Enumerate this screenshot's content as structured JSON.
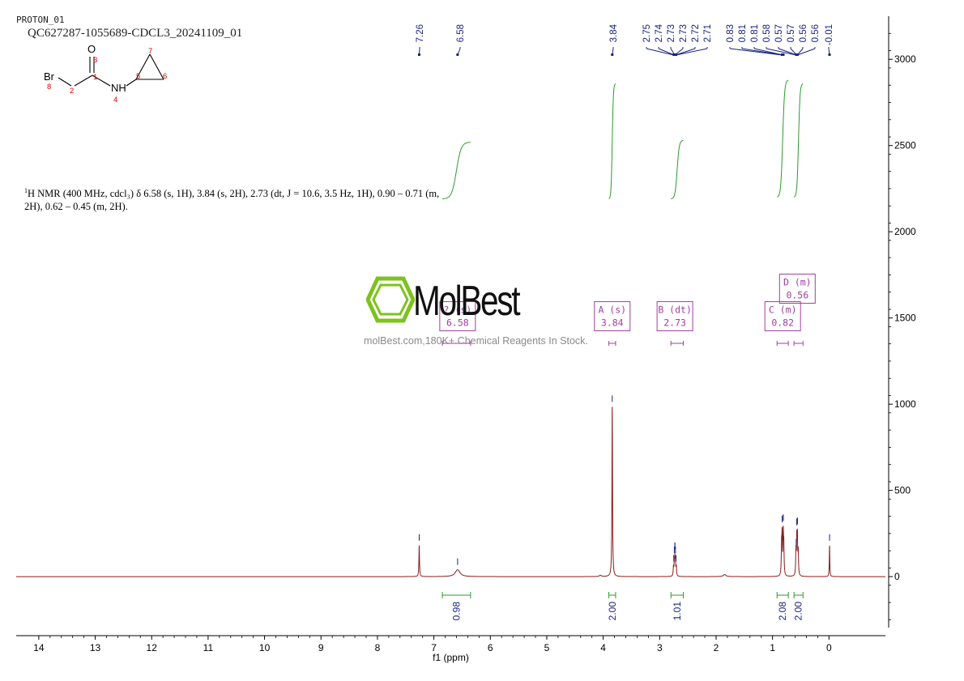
{
  "header": {
    "title": "PROTON_01",
    "sample": "QC627287-1055689-CDCL3_20241109_01"
  },
  "molecule": {
    "atoms": [
      "O",
      "NH",
      "Br"
    ],
    "atom_numbers": [
      "1",
      "2",
      "3",
      "4",
      "5",
      "6",
      "7",
      "8"
    ],
    "atom_number_color": "#e00000"
  },
  "summary": {
    "nucleus_sup": "1",
    "text_line1": "H NMR (400 MHz, cdcl₃) δ 6.58 (s, 1H), 3.84 (s, 2H), 2.73 (dt, J = 10.6, 3.5 Hz, 1H), 0.90 – 0.71 (m,",
    "text_line2": "2H), 0.62 – 0.45 (m, 2H)."
  },
  "watermark": {
    "brand": "MolBest",
    "tagline": "molBest.com,180K+ Chemical Reagents In Stock.",
    "color": "#7dc21e"
  },
  "colors": {
    "spectrum": "#8b1a1a",
    "integral": "#2e9a2e",
    "peak_label": "#1a237e",
    "multiplet_box": "#a040a0",
    "axis": "#000000"
  },
  "chart_data": {
    "type": "line",
    "xlabel": "f1 (ppm)",
    "x_ticks": [
      14,
      13,
      12,
      11,
      10,
      9,
      8,
      7,
      6,
      5,
      4,
      3,
      2,
      1,
      0
    ],
    "xlim": [
      14.4,
      -1.0
    ],
    "y_ticks": [
      3000,
      2500,
      2000,
      1500,
      1000,
      500,
      0
    ],
    "ylim": [
      -300,
      3250
    ],
    "peak_labels": [
      "7.26",
      "6.58",
      "3.84",
      "2.75",
      "2.74",
      "2.73",
      "2.73",
      "2.72",
      "2.71",
      "0.83",
      "0.81",
      "0.81",
      "0.58",
      "0.57",
      "0.57",
      "0.56",
      "0.56",
      "-0.01"
    ],
    "peak_label_positions_ppm": [
      7.26,
      6.58,
      3.84,
      2.75,
      2.74,
      2.73,
      2.73,
      2.72,
      2.71,
      0.83,
      0.81,
      0.81,
      0.58,
      0.57,
      0.57,
      0.56,
      0.56,
      -0.01
    ],
    "peaks": [
      {
        "ppm": 7.26,
        "height": 180,
        "width": 0.006
      },
      {
        "ppm": 6.58,
        "height": 40,
        "width": 0.05
      },
      {
        "ppm": 4.05,
        "height": 8,
        "width": 0.02
      },
      {
        "ppm": 3.84,
        "height": 985,
        "width": 0.006
      },
      {
        "ppm": 2.755,
        "height": 50,
        "width": 0.006
      },
      {
        "ppm": 2.74,
        "height": 70,
        "width": 0.006
      },
      {
        "ppm": 2.73,
        "height": 90,
        "width": 0.006
      },
      {
        "ppm": 2.72,
        "height": 70,
        "width": 0.006
      },
      {
        "ppm": 2.705,
        "height": 50,
        "width": 0.006
      },
      {
        "ppm": 1.85,
        "height": 12,
        "width": 0.03
      },
      {
        "ppm": 0.84,
        "height": 160,
        "width": 0.006
      },
      {
        "ppm": 0.83,
        "height": 220,
        "width": 0.006
      },
      {
        "ppm": 0.81,
        "height": 230,
        "width": 0.006
      },
      {
        "ppm": 0.8,
        "height": 150,
        "width": 0.006
      },
      {
        "ppm": 0.585,
        "height": 140,
        "width": 0.006
      },
      {
        "ppm": 0.57,
        "height": 190,
        "width": 0.006
      },
      {
        "ppm": 0.56,
        "height": 200,
        "width": 0.006
      },
      {
        "ppm": 0.545,
        "height": 130,
        "width": 0.006
      },
      {
        "ppm": -0.01,
        "height": 180,
        "width": 0.005
      }
    ],
    "integrals": [
      {
        "from": 6.85,
        "to": 6.35,
        "value": "0.98",
        "curve_start": 2190,
        "curve_end": 2520
      },
      {
        "from": 3.9,
        "to": 3.78,
        "value": "2.00",
        "curve_start": 2190,
        "curve_end": 2860
      },
      {
        "from": 2.8,
        "to": 2.58,
        "value": "1.01",
        "curve_start": 2190,
        "curve_end": 2530
      },
      {
        "from": 0.92,
        "to": 0.72,
        "value": "2.08",
        "curve_start": 2200,
        "curve_end": 2880
      },
      {
        "from": 0.62,
        "to": 0.46,
        "value": "2.00",
        "curve_start": 2200,
        "curve_end": 2860
      }
    ],
    "multiplets": [
      {
        "letter": "?",
        "type": "(s)",
        "shift": "6.58",
        "ppm": 6.58,
        "range": [
          6.85,
          6.35
        ],
        "level": 1510
      },
      {
        "letter": "A",
        "type": "(s)",
        "shift": "3.84",
        "ppm": 3.84,
        "range": [
          3.9,
          3.78
        ],
        "level": 1510
      },
      {
        "letter": "B",
        "type": "(dt)",
        "shift": "2.73",
        "ppm": 2.73,
        "range": [
          2.8,
          2.58
        ],
        "level": 1510
      },
      {
        "letter": "C",
        "type": "(m)",
        "shift": "0.82",
        "ppm": 0.82,
        "range": [
          0.92,
          0.72
        ],
        "level": 1510
      },
      {
        "letter": "D",
        "type": "(m)",
        "shift": "0.56",
        "ppm": 0.56,
        "range": [
          0.62,
          0.46
        ],
        "level": 1670
      }
    ]
  }
}
